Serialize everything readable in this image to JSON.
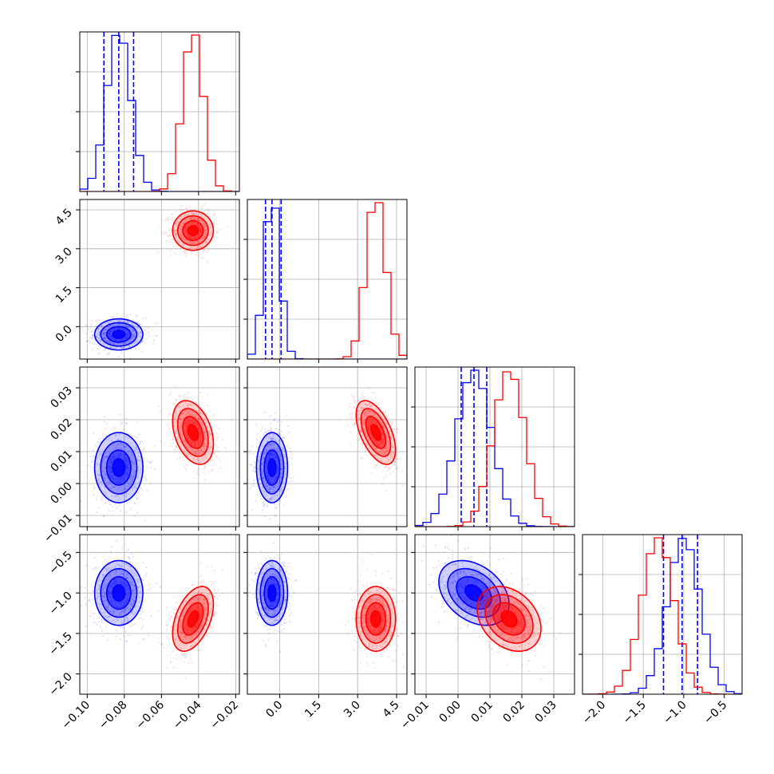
{
  "chart_data": {
    "type": "corner",
    "grid": true,
    "colors": {
      "series_a": "#0000ff",
      "series_b": "#ff0000"
    },
    "series": [
      {
        "means": [
          -0.083,
          -0.3,
          0.005,
          -1.0
        ],
        "sds": [
          0.0065,
          0.3,
          0.0055,
          0.2
        ],
        "corr": [
          [
            0,
            1,
            0.0
          ],
          [
            0,
            2,
            0.0
          ],
          [
            0,
            3,
            0.0
          ],
          [
            1,
            2,
            0.0
          ],
          [
            1,
            3,
            0.0
          ],
          [
            2,
            3,
            -0.35
          ]
        ],
        "quantiles": [
          [
            -0.091,
            -0.083,
            -0.075
          ],
          [
            -0.55,
            -0.3,
            0.05
          ],
          [
            0.001,
            0.005,
            0.009
          ],
          [
            -1.25,
            -1.02,
            -0.83
          ]
        ]
      },
      {
        "means": [
          -0.043,
          3.7,
          0.016,
          -1.32
        ],
        "sds": [
          0.0055,
          0.38,
          0.005,
          0.2
        ],
        "corr": [
          [
            0,
            1,
            0.0
          ],
          [
            0,
            2,
            -0.35
          ],
          [
            0,
            3,
            0.45
          ],
          [
            1,
            2,
            -0.55
          ],
          [
            1,
            3,
            0.0
          ],
          [
            2,
            3,
            -0.3
          ]
        ]
      }
    ],
    "parameters": [
      {
        "range": [
          -0.104,
          -0.018
        ],
        "ticks": [
          "-0.10",
          "-0.08",
          "-0.06",
          "-0.04",
          "-0.02"
        ],
        "tick_values": [
          -0.1,
          -0.08,
          -0.06,
          -0.04,
          -0.02
        ]
      },
      {
        "range": [
          -1.25,
          4.9
        ],
        "ticks": [
          "0.0",
          "1.5",
          "3.0",
          "4.5"
        ],
        "tick_values": [
          0.0,
          1.5,
          3.0,
          4.5
        ]
      },
      {
        "range": [
          -0.0135,
          0.0365
        ],
        "ticks": [
          "-0.01",
          "0.00",
          "0.01",
          "0.02",
          "0.03"
        ],
        "tick_values": [
          -0.01,
          0.0,
          0.01,
          0.02,
          0.03
        ]
      },
      {
        "range": [
          -2.25,
          -0.28
        ],
        "ticks": [
          "-2.0",
          "-1.5",
          "-1.0",
          "-0.5"
        ],
        "tick_values": [
          -2.0,
          -1.5,
          -1.0,
          -0.5
        ]
      }
    ]
  }
}
